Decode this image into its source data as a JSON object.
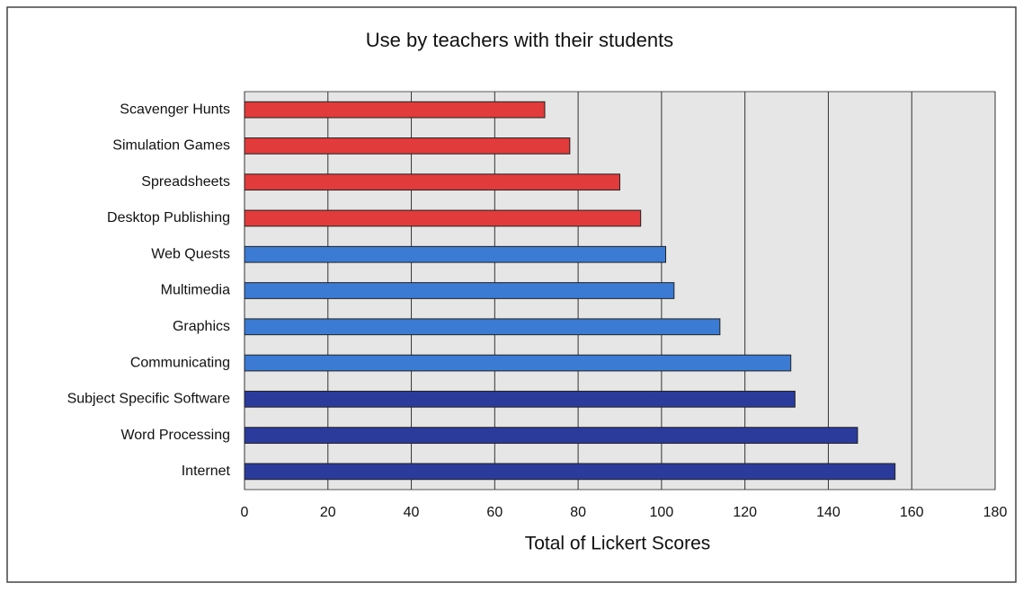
{
  "chart_data": {
    "type": "barh",
    "title": "Use by teachers with their students",
    "xlabel": "Total of Lickert Scores",
    "categories": [
      "Scavenger Hunts",
      "Simulation Games",
      "Spreadsheets",
      "Desktop Publishing",
      "Web Quests",
      "Multimedia",
      "Graphics",
      "Communicating",
      "Subject Specific Software",
      "Word Processing",
      "Internet"
    ],
    "values": [
      72,
      78,
      90,
      95,
      101,
      103,
      114,
      131,
      132,
      147,
      156
    ],
    "colors": [
      "#e23b3b",
      "#e23b3b",
      "#e23b3b",
      "#e23b3b",
      "#3b7bd4",
      "#3b7bd4",
      "#3b7bd4",
      "#3b7bd4",
      "#2b3b9c",
      "#2b3b9c",
      "#2b3b9c"
    ],
    "xlim": [
      0,
      180
    ],
    "xticks": [
      0,
      20,
      40,
      60,
      80,
      100,
      120,
      140,
      160,
      180
    ],
    "grid": true
  }
}
